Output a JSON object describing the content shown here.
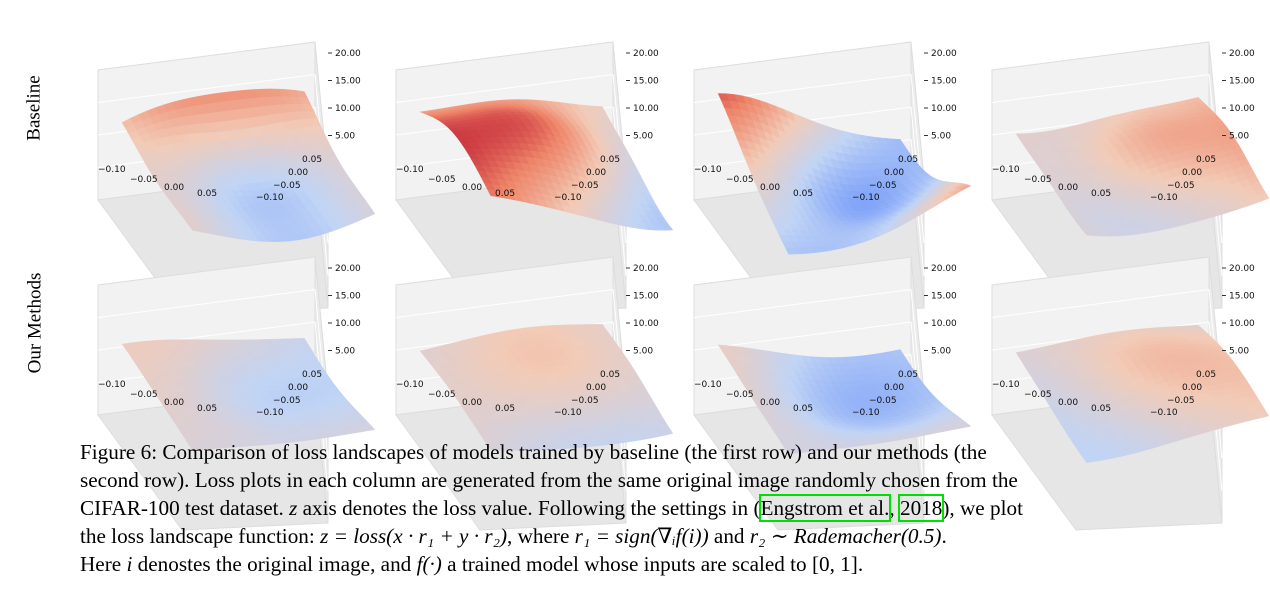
{
  "row_labels": [
    "Baseline",
    "Our Methods"
  ],
  "axes": {
    "z_ticks": [
      "20.00",
      "15.00",
      "10.00",
      "5.00"
    ],
    "x_ticks": [
      "−0.10",
      "−0.05",
      "0.00",
      "0.05"
    ],
    "y_ticks": [
      "0.05",
      "0.00",
      "−0.05",
      "−0.10"
    ]
  },
  "panels": [
    {
      "row": 0,
      "col": 0
    },
    {
      "row": 0,
      "col": 1
    },
    {
      "row": 0,
      "col": 2
    },
    {
      "row": 0,
      "col": 3
    },
    {
      "row": 1,
      "col": 0
    },
    {
      "row": 1,
      "col": 1
    },
    {
      "row": 1,
      "col": 2
    },
    {
      "row": 1,
      "col": 3
    }
  ],
  "colormap": [
    "#3b4cc0",
    "#7b9ff9",
    "#c0d4f5",
    "#f2cbb7",
    "#ee8468",
    "#b40426"
  ],
  "caption": {
    "l1": "Figure 6: Comparison of loss landscapes of models trained by baseline (the first row) and our methods (the",
    "l2": "second row). Loss plots in each column are generated from the same original image randomly chosen from the",
    "l3_a": "CIFAR-100 test dataset.",
    "l3_z": "z",
    "l3_b": "axis denotes the loss value. Following the settings in (",
    "l3_cite_author": "Engstrom et al.",
    "l3_sep": ",",
    "l3_cite_year": "2018",
    "l3_c": "), we plot",
    "l4_a": "the loss landscape function:",
    "l4_eq1": "z = loss(x · r₁ + y · r₂)",
    "l4_b": ", where",
    "l4_eq2": "r₁ = sign(∇ᵢf(i))",
    "l4_c": "and",
    "l4_eq3": "r₂ ∼ Rademacher(0.5)",
    "l4_d": ".",
    "l5_a": "Here",
    "l5_i": "i",
    "l5_b": "denostes the original image, and",
    "l5_f": "f(·)",
    "l5_c": "a trained model whose inputs are scaled to",
    "l5_range": "[0, 1]",
    "l5_d": "."
  }
}
